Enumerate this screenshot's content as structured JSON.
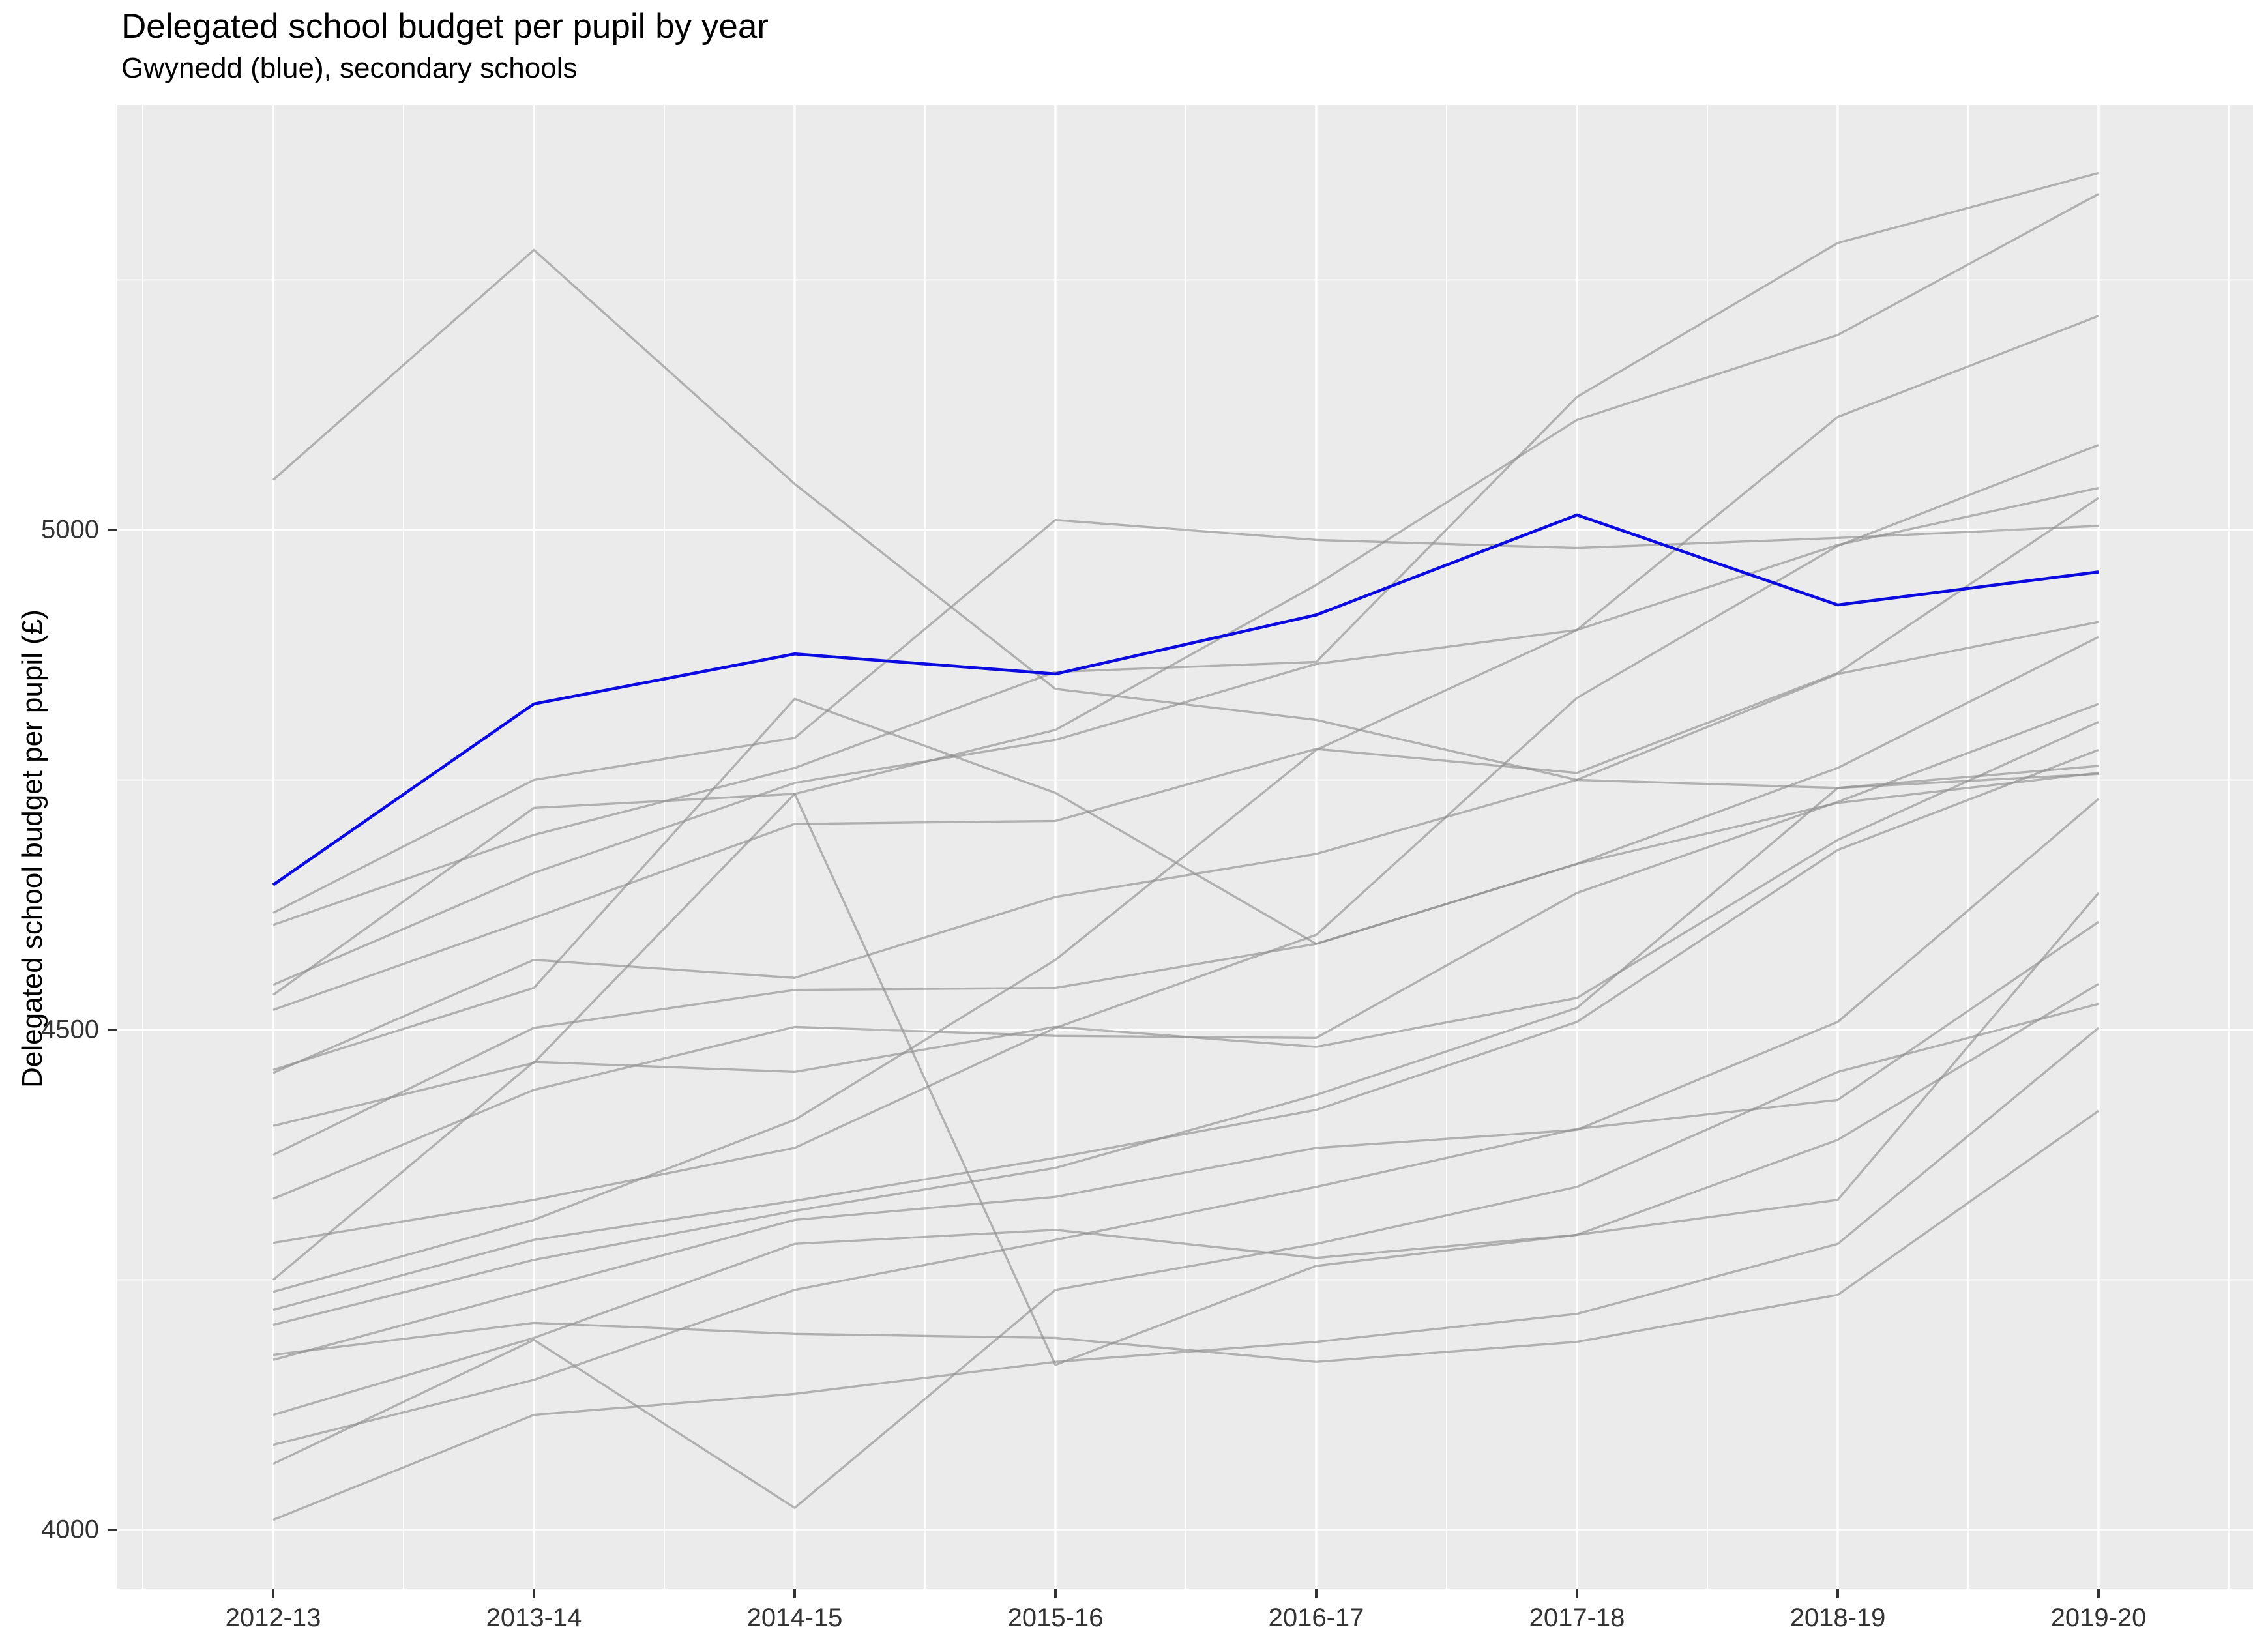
{
  "title": "Delegated school budget per pupil by year",
  "subtitle": "Gwynedd (blue), secondary schools",
  "colors": {
    "panel_background": "#EBEBEB",
    "gridline": "#FFFFFF",
    "gray_line": "#8C8C8C",
    "highlight_line": "#0B0BE0",
    "tick_text": "#333333",
    "tick_mark": "#333333"
  },
  "chart_data": {
    "type": "line",
    "title": "Delegated school budget per pupil by year",
    "subtitle": "Gwynedd (blue), secondary schools",
    "xlabel": "",
    "ylabel": "Delegated school budget per pupil (£)",
    "x_categories": [
      "2012-13",
      "2013-14",
      "2014-15",
      "2015-16",
      "2016-17",
      "2017-18",
      "2018-19",
      "2019-20"
    ],
    "y_ticks": [
      4000,
      4500,
      5000
    ],
    "y_minor_ticks": [
      4250,
      4750,
      5250
    ],
    "ylim": [
      3940,
      5425
    ],
    "grid": "white major and minor gridlines on gray panel, ggplot style",
    "legend": "none (highlighted series identified in subtitle)",
    "highlight": {
      "name": "Gwynedd",
      "values": [
        4645,
        4826,
        4876,
        4856,
        4915,
        5015,
        4925,
        4958
      ]
    },
    "series": [
      {
        "name": "line-01",
        "values": [
          5050,
          5280,
          5046,
          4841,
          4810,
          4750,
          4742,
          4756
        ]
      },
      {
        "name": "line-02",
        "values": [
          4617,
          4750,
          4792,
          5010,
          4990,
          4982,
          4992,
          5004
        ]
      },
      {
        "name": "line-03",
        "values": [
          4404,
          4467,
          4736,
          4800,
          4945,
          5110,
          5195,
          5336
        ]
      },
      {
        "name": "line-04",
        "values": [
          4605,
          4695,
          4762,
          4858,
          4868,
          5133,
          5287,
          5357
        ]
      },
      {
        "name": "line-05",
        "values": [
          4238,
          4310,
          4410,
          4570,
          4780,
          4900,
          5113,
          5214
        ]
      },
      {
        "name": "line-06",
        "values": [
          4287,
          4330,
          4382,
          4502,
          4595,
          4832,
          4984,
          5085
        ]
      },
      {
        "name": "line-07",
        "values": [
          4545,
          4657,
          4747,
          4790,
          4866,
          4900,
          4985,
          5042
        ]
      },
      {
        "name": "line-08",
        "values": [
          4520,
          4612,
          4706,
          4709,
          4781,
          4757,
          4857,
          5032
        ]
      },
      {
        "name": "line-09",
        "values": [
          4457,
          4570,
          4552,
          4633,
          4676,
          4750,
          4856,
          4908
        ]
      },
      {
        "name": "line-10",
        "values": [
          4375,
          4502,
          4540,
          4542,
          4586,
          4666,
          4762,
          4893
        ]
      },
      {
        "name": "line-11",
        "values": [
          4331,
          4440,
          4503,
          4494,
          4492,
          4637,
          4728,
          4826
        ]
      },
      {
        "name": "line-12",
        "values": [
          4250,
          4468,
          4458,
          4503,
          4483,
          4532,
          4690,
          4808
        ]
      },
      {
        "name": "line-13",
        "values": [
          4220,
          4290,
          4329,
          4372,
          4420,
          4508,
          4680,
          4780
        ]
      },
      {
        "name": "line-14",
        "values": [
          4205,
          4270,
          4319,
          4362,
          4435,
          4522,
          4742,
          4764
        ]
      },
      {
        "name": "line-15",
        "values": [
          4170,
          4240,
          4310,
          4333,
          4382,
          4400,
          4508,
          4731
        ]
      },
      {
        "name": "line-16",
        "values": [
          4115,
          4192,
          4286,
          4300,
          4272,
          4295,
          4330,
          4637
        ]
      },
      {
        "name": "line-17",
        "values": [
          4085,
          4150,
          4240,
          4290,
          4343,
          4401,
          4430,
          4608
        ]
      },
      {
        "name": "line-18",
        "values": [
          4535,
          4722,
          4736,
          4165,
          4264,
          4295,
          4390,
          4546
        ]
      },
      {
        "name": "line-19",
        "values": [
          4066,
          4190,
          4022,
          4240,
          4286,
          4343,
          4458,
          4526
        ]
      },
      {
        "name": "line-20",
        "values": [
          4010,
          4115,
          4136,
          4168,
          4188,
          4216,
          4286,
          4502
        ]
      },
      {
        "name": "line-21",
        "values": [
          4175,
          4207,
          4196,
          4192,
          4168,
          4188,
          4235,
          4419
        ]
      },
      {
        "name": "line-22",
        "values": [
          4460,
          4542,
          4831,
          4737,
          4586,
          4666,
          4727,
          4757
        ]
      }
    ]
  }
}
